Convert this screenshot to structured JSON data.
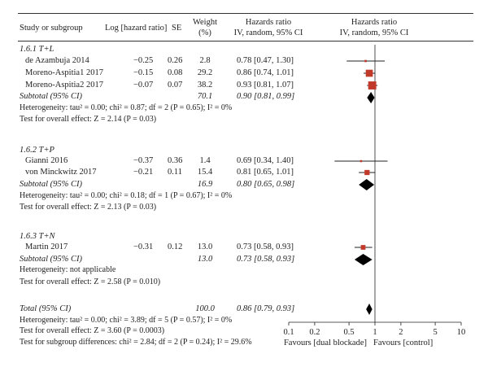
{
  "header": {
    "study": "Study or subgroup",
    "loghr": "Log [hazard ratio]",
    "se": "SE",
    "weight_l1": "Weight",
    "weight_l2": "(%)",
    "hr_l1": "Hazards ratio",
    "hr_l2": "IV, random, 95% CI",
    "plot_l1": "Hazards ratio",
    "plot_l2": "IV, random, 95% CI"
  },
  "groups": [
    {
      "title": "1.6.1 T+L",
      "studies": [
        {
          "name": "de Azambuja 2014",
          "loghr": "−0.25",
          "se": "0.26",
          "weight": "2.8",
          "ci_text": "0.78 [0.47, 1.30]"
        },
        {
          "name": "Moreno-Aspitia1 2017",
          "loghr": "−0.15",
          "se": "0.08",
          "weight": "29.2",
          "ci_text": "0.86 [0.74, 1.01]"
        },
        {
          "name": "Moreno-Aspitia2 2017",
          "loghr": "−0.07",
          "se": "0.07",
          "weight": "38.2",
          "ci_text": "0.93 [0.81, 1.07]"
        }
      ],
      "subtotal": {
        "label": "Subtotal (95% CI)",
        "weight": "70.1",
        "ci_text": "0.90 [0.81, 0.99]"
      },
      "heterogeneity": "Heterogeneity: tau² = 0.00; chi² = 0.87; df = 2 (P = 0.65); I² = 0%",
      "overall": "Test for overall effect: Z = 2.14 (P = 0.03)"
    },
    {
      "title": "1.6.2 T+P",
      "studies": [
        {
          "name": "Gianni 2016",
          "loghr": "−0.37",
          "se": "0.36",
          "weight": "1.4",
          "ci_text": "0.69 [0.34, 1.40]"
        },
        {
          "name": "von Minckwitz 2017",
          "loghr": "−0.21",
          "se": "0.11",
          "weight": "15.4",
          "ci_text": "0.81 [0.65, 1.01]"
        }
      ],
      "subtotal": {
        "label": "Subtotal (95% CI)",
        "weight": "16.9",
        "ci_text": "0.80 [0.65, 0.98]"
      },
      "heterogeneity": "Heterogeneity: tau² = 0.00; chi² = 0.18; df = 1 (P = 0.67); I² = 0%",
      "overall": "Test for overall effect: Z = 2.13 (P = 0.03)"
    },
    {
      "title": "1.6.3 T+N",
      "studies": [
        {
          "name": "Martin 2017",
          "loghr": "−0.31",
          "se": "0.12",
          "weight": "13.0",
          "ci_text": "0.73 [0.58, 0.93]"
        }
      ],
      "subtotal": {
        "label": "Subtotal (95% CI)",
        "weight": "13.0",
        "ci_text": "0.73 [0.58, 0.93]"
      },
      "heterogeneity": "Heterogeneity: not applicable",
      "overall": "Test for overall effect: Z = 2.58 (P = 0.010)"
    }
  ],
  "total": {
    "label": "Total (95% CI)",
    "weight": "100.0",
    "ci_text": "0.86 [0.79, 0.93]",
    "heterogeneity": "Heterogeneity: tau² = 0.00; chi² = 3.89; df = 5 (P = 0.57); I² = 0%",
    "overall": "Test for overall effect: Z = 3.60 (P = 0.0003)",
    "subgroup": "Test for subgroup differences: chi² = 2.84; df = 2 (P = 0.24); I² = 29.6%"
  },
  "axis": {
    "ticks": [
      "0.1",
      "0.2",
      "0.5",
      "1",
      "2",
      "5",
      "10"
    ],
    "favours_left": "Favours [dual blockade]",
    "favours_right": "Favours [control]"
  },
  "chart_data": {
    "type": "forest",
    "x_scale": "log",
    "xlim": [
      0.1,
      10
    ],
    "reference_line": 1,
    "colors": {
      "study_marker": "#c0392b",
      "line": "#222222",
      "diamond": "#000000"
    },
    "studies": [
      {
        "name": "de Azambuja 2014",
        "hr": 0.78,
        "lo": 0.47,
        "hi": 1.3,
        "weight": 2.8
      },
      {
        "name": "Moreno-Aspitia1 2017",
        "hr": 0.86,
        "lo": 0.74,
        "hi": 1.01,
        "weight": 29.2
      },
      {
        "name": "Moreno-Aspitia2 2017",
        "hr": 0.93,
        "lo": 0.81,
        "hi": 1.07,
        "weight": 38.2
      },
      {
        "name": "Gianni 2016",
        "hr": 0.69,
        "lo": 0.34,
        "hi": 1.4,
        "weight": 1.4
      },
      {
        "name": "von Minckwitz 2017",
        "hr": 0.81,
        "lo": 0.65,
        "hi": 1.01,
        "weight": 15.4
      },
      {
        "name": "Martin 2017",
        "hr": 0.73,
        "lo": 0.58,
        "hi": 0.93,
        "weight": 13.0
      }
    ],
    "subtotals": [
      {
        "name": "Subtotal 1.6.1 T+L",
        "hr": 0.9,
        "lo": 0.81,
        "hi": 0.99
      },
      {
        "name": "Subtotal 1.6.2 T+P",
        "hr": 0.8,
        "lo": 0.65,
        "hi": 0.98
      },
      {
        "name": "Subtotal 1.6.3 T+N",
        "hr": 0.73,
        "lo": 0.58,
        "hi": 0.93
      }
    ],
    "overall": {
      "name": "Total",
      "hr": 0.86,
      "lo": 0.79,
      "hi": 0.93
    }
  }
}
